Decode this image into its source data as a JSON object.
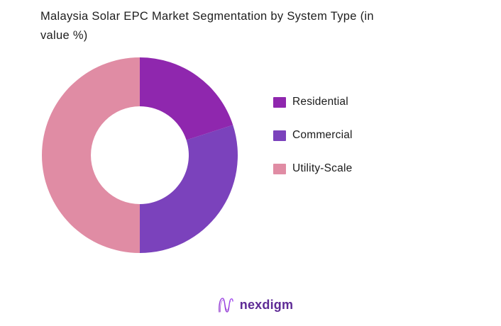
{
  "header": {
    "title_line1": "Malaysia Solar EPC Market Segmentation by System Type (in",
    "title_line2": "value %)"
  },
  "chart_data": {
    "type": "pie",
    "subtype": "donut",
    "title": "Malaysia Solar EPC Market Segmentation by System Type (in value %)",
    "categories": [
      "Residential",
      "Commercial",
      "Utility-Scale"
    ],
    "values": [
      20,
      30,
      50
    ],
    "unit": "value %",
    "colors": [
      "#8F27AE",
      "#7B42BC",
      "#E08CA4"
    ],
    "start_angle_deg": 0,
    "direction": "clockwise",
    "inner_radius_ratio": 0.5,
    "legend_position": "right",
    "data_labels": false,
    "background": "#FFFFFF"
  },
  "footer": {
    "brand": "nexdigm",
    "brand_color": "#5E2B96",
    "logo_gradient": [
      "#8B2FC9",
      "#A24BF0"
    ]
  }
}
